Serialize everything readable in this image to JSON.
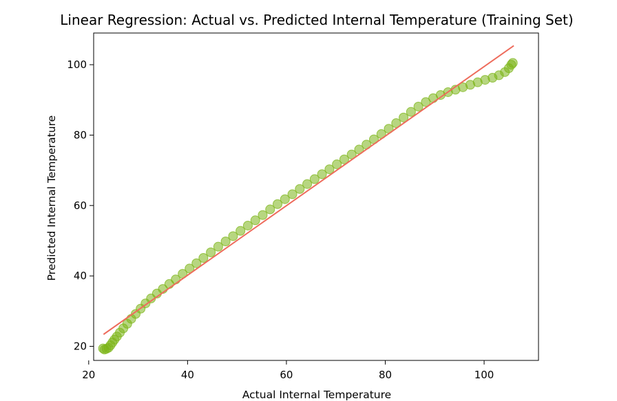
{
  "chart_data": {
    "type": "scatter",
    "title": "Linear Regression: Actual vs. Predicted Internal Temperature (Training Set)",
    "xlabel": "Actual Internal Temperature",
    "ylabel": "Predicted Internal Temperature",
    "xlim": [
      21,
      111
    ],
    "ylim": [
      16,
      109
    ],
    "xticks": [
      20,
      40,
      60,
      80,
      100
    ],
    "yticks": [
      20,
      40,
      60,
      80,
      100
    ],
    "grid": false,
    "legend": "none",
    "series": [
      {
        "marker": "circle",
        "color": "#7cb518",
        "points": [
          [
            22.9,
            19.4
          ],
          [
            23.2,
            19.1
          ],
          [
            23.6,
            19.3
          ],
          [
            24.0,
            19.6
          ],
          [
            24.4,
            20.3
          ],
          [
            24.8,
            21.1
          ],
          [
            25.2,
            21.9
          ],
          [
            25.7,
            22.8
          ],
          [
            26.3,
            23.9
          ],
          [
            27.0,
            25.1
          ],
          [
            27.8,
            26.4
          ],
          [
            28.6,
            27.8
          ],
          [
            29.5,
            29.2
          ],
          [
            30.5,
            30.7
          ],
          [
            31.5,
            32.2
          ],
          [
            32.6,
            33.6
          ],
          [
            33.8,
            35.0
          ],
          [
            35.0,
            36.3
          ],
          [
            36.3,
            37.7
          ],
          [
            37.6,
            39.0
          ],
          [
            39.0,
            40.6
          ],
          [
            40.4,
            42.1
          ],
          [
            41.8,
            43.6
          ],
          [
            43.2,
            45.1
          ],
          [
            44.7,
            46.7
          ],
          [
            46.2,
            48.3
          ],
          [
            47.7,
            49.8
          ],
          [
            49.2,
            51.3
          ],
          [
            50.7,
            52.8
          ],
          [
            52.2,
            54.3
          ],
          [
            53.7,
            55.8
          ],
          [
            55.2,
            57.3
          ],
          [
            56.7,
            58.9
          ],
          [
            58.2,
            60.4
          ],
          [
            59.7,
            61.8
          ],
          [
            61.2,
            63.2
          ],
          [
            62.7,
            64.7
          ],
          [
            64.2,
            66.1
          ],
          [
            65.7,
            67.5
          ],
          [
            67.2,
            68.9
          ],
          [
            68.7,
            70.3
          ],
          [
            70.2,
            71.7
          ],
          [
            71.7,
            73.1
          ],
          [
            73.2,
            74.5
          ],
          [
            74.7,
            75.9
          ],
          [
            76.2,
            77.3
          ],
          [
            77.7,
            78.8
          ],
          [
            79.2,
            80.3
          ],
          [
            80.7,
            81.8
          ],
          [
            82.2,
            83.4
          ],
          [
            83.7,
            85.0
          ],
          [
            85.2,
            86.6
          ],
          [
            86.7,
            88.1
          ],
          [
            88.2,
            89.4
          ],
          [
            89.7,
            90.5
          ],
          [
            91.2,
            91.4
          ],
          [
            92.7,
            92.2
          ],
          [
            94.2,
            92.9
          ],
          [
            95.7,
            93.6
          ],
          [
            97.2,
            94.3
          ],
          [
            98.7,
            95.0
          ],
          [
            100.2,
            95.7
          ],
          [
            101.7,
            96.3
          ],
          [
            103.0,
            97.0
          ],
          [
            104.2,
            97.9
          ],
          [
            105.0,
            99.0
          ],
          [
            105.5,
            100.0
          ],
          [
            105.8,
            100.5
          ]
        ]
      }
    ],
    "fit_line": {
      "color": "#ee6c5c",
      "x": [
        23.0,
        106.0
      ],
      "y": [
        23.4,
        105.4
      ]
    }
  }
}
